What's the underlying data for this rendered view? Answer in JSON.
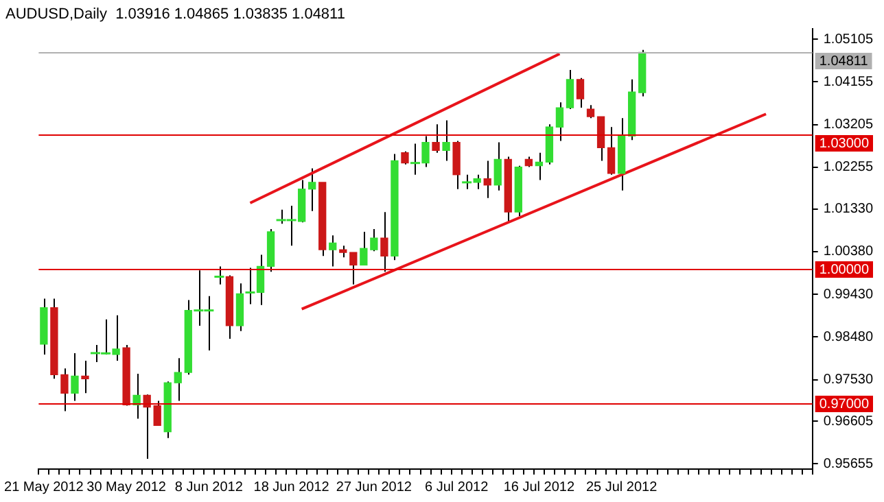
{
  "chart_data": {
    "type": "candlestick",
    "title": "AUDUSD,Daily  1.03916 1.04865 1.03835 1.04811",
    "categories": [
      "21 May 2012",
      null,
      null,
      null,
      null,
      null,
      null,
      null,
      "30 May 2012",
      null,
      null,
      null,
      null,
      null,
      null,
      null,
      "8 Jun 2012",
      null,
      null,
      null,
      null,
      null,
      null,
      null,
      "18 Jun 2012",
      null,
      null,
      null,
      null,
      null,
      null,
      null,
      "27 Jun 2012",
      null,
      null,
      null,
      null,
      null,
      null,
      null,
      "6 Jul 2012",
      null,
      null,
      null,
      null,
      null,
      null,
      null,
      "16 Jul 2012",
      null,
      null,
      null,
      null,
      null,
      null,
      null,
      "25 Jul 2012",
      null,
      null,
      null,
      null,
      null,
      null,
      null,
      null,
      null,
      null,
      null,
      null,
      null,
      null,
      null,
      null,
      null,
      null
    ],
    "ohlc": [
      [
        0.9832,
        0.9933,
        0.9809,
        0.9913
      ],
      [
        0.9913,
        0.9933,
        0.9755,
        0.9764
      ],
      [
        0.9764,
        0.9778,
        0.9683,
        0.9723
      ],
      [
        0.9723,
        0.9812,
        0.9706,
        0.9761
      ],
      [
        0.9761,
        0.9795,
        0.9723,
        0.9755
      ],
      [
        0.9812,
        0.983,
        0.9792,
        0.9812
      ],
      [
        0.9811,
        0.9887,
        0.9809,
        0.9812
      ],
      [
        0.9809,
        0.9896,
        0.9795,
        0.9821
      ],
      [
        0.9824,
        0.983,
        0.9695,
        0.9697
      ],
      [
        0.9697,
        0.9766,
        0.9666,
        0.9718
      ],
      [
        0.9718,
        0.972,
        0.9577,
        0.9692
      ],
      [
        0.9695,
        0.9706,
        0.9651,
        0.9651
      ],
      [
        0.9637,
        0.9749,
        0.9623,
        0.9746
      ],
      [
        0.9746,
        0.9801,
        0.9706,
        0.9769
      ],
      [
        0.9769,
        0.993,
        0.9764,
        0.9907
      ],
      [
        0.9907,
        0.9996,
        0.9873,
        0.9907
      ],
      [
        0.9907,
        0.9939,
        0.9818,
        0.9907
      ],
      [
        0.9982,
        1.0005,
        0.9965,
        0.9982
      ],
      [
        0.9982,
        0.9985,
        0.9844,
        0.9873
      ],
      [
        0.9873,
        0.9967,
        0.9861,
        0.9944
      ],
      [
        0.9947,
        1.0002,
        0.9921,
        0.9947
      ],
      [
        0.9947,
        1.0031,
        0.9919,
        1.0005
      ],
      [
        1.0005,
        1.0088,
        0.9993,
        1.0082
      ],
      [
        1.0108,
        1.0131,
        1.01,
        1.0108
      ],
      [
        1.0108,
        1.014,
        1.0051,
        1.0108
      ],
      [
        1.0105,
        1.0197,
        1.0103,
        1.0177
      ],
      [
        1.0177,
        1.0223,
        1.0128,
        1.0192
      ],
      [
        1.0192,
        1.0192,
        1.0028,
        1.0042
      ],
      [
        1.0042,
        1.0074,
        1.0005,
        1.0057
      ],
      [
        1.0042,
        1.0051,
        1.0025,
        1.0036
      ],
      [
        1.0036,
        1.0036,
        0.9965,
        1.0008
      ],
      [
        1.0008,
        1.0082,
        1.0008,
        1.0045
      ],
      [
        1.0042,
        1.0088,
        1.0039,
        1.0068
      ],
      [
        1.0068,
        1.0126,
        0.9993,
        1.0028
      ],
      [
        1.0028,
        1.0255,
        1.0019,
        1.024
      ],
      [
        1.0258,
        1.0261,
        1.0232,
        1.0235
      ],
      [
        1.0235,
        1.0278,
        1.0209,
        1.0235
      ],
      [
        1.0235,
        1.0295,
        1.0226,
        1.0281
      ],
      [
        1.0281,
        1.0321,
        1.0258,
        1.0263
      ],
      [
        1.0263,
        1.033,
        1.024,
        1.0281
      ],
      [
        1.0281,
        1.0284,
        1.0177,
        1.0209
      ],
      [
        1.0192,
        1.0209,
        1.0177,
        1.0192
      ],
      [
        1.0192,
        1.0209,
        1.0177,
        1.02
      ],
      [
        1.02,
        1.024,
        1.0157,
        1.0186
      ],
      [
        1.0186,
        1.0281,
        1.0174,
        1.0243
      ],
      [
        1.0243,
        1.0249,
        1.0105,
        1.0126
      ],
      [
        1.0126,
        1.0229,
        1.0117,
        1.0226
      ],
      [
        1.0243,
        1.0249,
        1.0226,
        1.0229
      ],
      [
        1.0229,
        1.0258,
        1.0197,
        1.0237
      ],
      [
        1.0237,
        1.0321,
        1.0232,
        1.0315
      ],
      [
        1.0315,
        1.037,
        1.0284,
        1.0358
      ],
      [
        1.0358,
        1.0442,
        1.0355,
        1.0421
      ],
      [
        1.0421,
        1.0424,
        1.0358,
        1.0378
      ],
      [
        1.0355,
        1.0364,
        1.0335,
        1.0338
      ],
      [
        1.0338,
        1.0338,
        1.024,
        1.0269
      ],
      [
        1.0269,
        1.0315,
        1.0209,
        1.0212
      ],
      [
        1.0212,
        1.0335,
        1.0174,
        1.0295
      ],
      [
        1.0295,
        1.0421,
        1.0286,
        1.0393
      ],
      [
        1.03916,
        1.04865,
        1.03835,
        1.04811
      ],
      null,
      null,
      null,
      null,
      null,
      null,
      null,
      null,
      null,
      null,
      null,
      null,
      null,
      null,
      null,
      null
    ],
    "colors": [
      "#33dd33",
      "#cc1818",
      "#cc1818",
      "#33dd33",
      "#cc1818",
      "#33dd33",
      "#33dd33",
      "#33dd33",
      "#cc1818",
      "#33dd33",
      "#cc1818",
      "#cc1818",
      "#33dd33",
      "#33dd33",
      "#33dd33",
      "#33dd33",
      "#33dd33",
      "#33dd33",
      "#cc1818",
      "#33dd33",
      "#33dd33",
      "#33dd33",
      "#33dd33",
      "#33dd33",
      "#33dd33",
      "#33dd33",
      "#33dd33",
      "#cc1818",
      "#33dd33",
      "#cc1818",
      "#cc1818",
      "#33dd33",
      "#33dd33",
      "#cc1818",
      "#33dd33",
      "#cc1818",
      "#33dd33",
      "#33dd33",
      "#cc1818",
      "#33dd33",
      "#cc1818",
      "#33dd33",
      "#33dd33",
      "#cc1818",
      "#33dd33",
      "#cc1818",
      "#33dd33",
      "#cc1818",
      "#33dd33",
      "#33dd33",
      "#33dd33",
      "#33dd33",
      "#cc1818",
      "#cc1818",
      "#cc1818",
      "#cc1818",
      "#33dd33",
      "#33dd33",
      "#33dd33",
      null,
      null,
      null,
      null,
      null,
      null,
      null,
      null,
      null,
      null,
      null,
      null,
      null,
      null,
      null,
      null
    ],
    "series": [
      {
        "type": "line",
        "color": "#e8141b",
        "values": [
          null,
          null,
          null,
          null,
          null,
          null,
          null,
          null,
          null,
          null,
          null,
          null,
          null,
          null,
          null,
          null,
          null,
          null,
          null,
          null,
          1.0146,
          null,
          null,
          null,
          null,
          null,
          null,
          null,
          null,
          null,
          null,
          null,
          null,
          null,
          null,
          null,
          null,
          null,
          null,
          null,
          null,
          null,
          null,
          null,
          null,
          null,
          null,
          null,
          null,
          null,
          1.0478,
          null,
          null,
          null,
          null,
          null,
          null,
          null,
          null,
          null,
          null,
          null,
          null,
          null,
          null,
          null,
          null,
          null,
          null,
          null,
          null,
          null,
          null,
          null,
          null
        ]
      },
      {
        "type": "line",
        "color": "#e8141b",
        "values": [
          null,
          null,
          null,
          null,
          null,
          null,
          null,
          null,
          null,
          null,
          null,
          null,
          null,
          null,
          null,
          null,
          null,
          null,
          null,
          null,
          null,
          null,
          null,
          null,
          null,
          0.991,
          null,
          null,
          null,
          null,
          null,
          null,
          null,
          null,
          null,
          null,
          null,
          null,
          null,
          null,
          null,
          null,
          null,
          null,
          null,
          null,
          null,
          null,
          null,
          null,
          null,
          null,
          null,
          null,
          null,
          null,
          null,
          null,
          null,
          null,
          null,
          null,
          null,
          null,
          null,
          null,
          null,
          null,
          null,
          null,
          1.0344,
          null,
          null,
          null,
          null
        ]
      }
    ],
    "ylim": [
      0.9554,
      1.0533
    ],
    "yticks": [
      {
        "value": 0.95655,
        "label": "0.95655"
      },
      {
        "value": 0.96605,
        "label": "0.96605"
      },
      {
        "value": 0.9753,
        "label": "0.97530"
      },
      {
        "value": 0.9848,
        "label": "0.98480"
      },
      {
        "value": 0.9943,
        "label": "0.99430"
      },
      {
        "value": 1.0038,
        "label": "1.00380"
      },
      {
        "value": 1.0133,
        "label": "1.01330"
      },
      {
        "value": 1.02255,
        "label": "1.02255"
      },
      {
        "value": 1.03205,
        "label": "1.03205"
      },
      {
        "value": 1.04155,
        "label": "1.04155"
      },
      {
        "value": 1.05105,
        "label": "1.05105"
      }
    ],
    "ref_lines": [
      {
        "axis": "y",
        "value": 1.03,
        "label": "1.03000",
        "color": "#e00000"
      },
      {
        "axis": "y",
        "value": 1.0,
        "label": "1.00000",
        "color": "#e00000"
      },
      {
        "axis": "y",
        "value": 0.97,
        "label": "0.97000",
        "color": "#e00000"
      },
      {
        "axis": "y",
        "value": 1.04811,
        "label": "1.04811",
        "color": "#b0b0b0"
      }
    ]
  }
}
